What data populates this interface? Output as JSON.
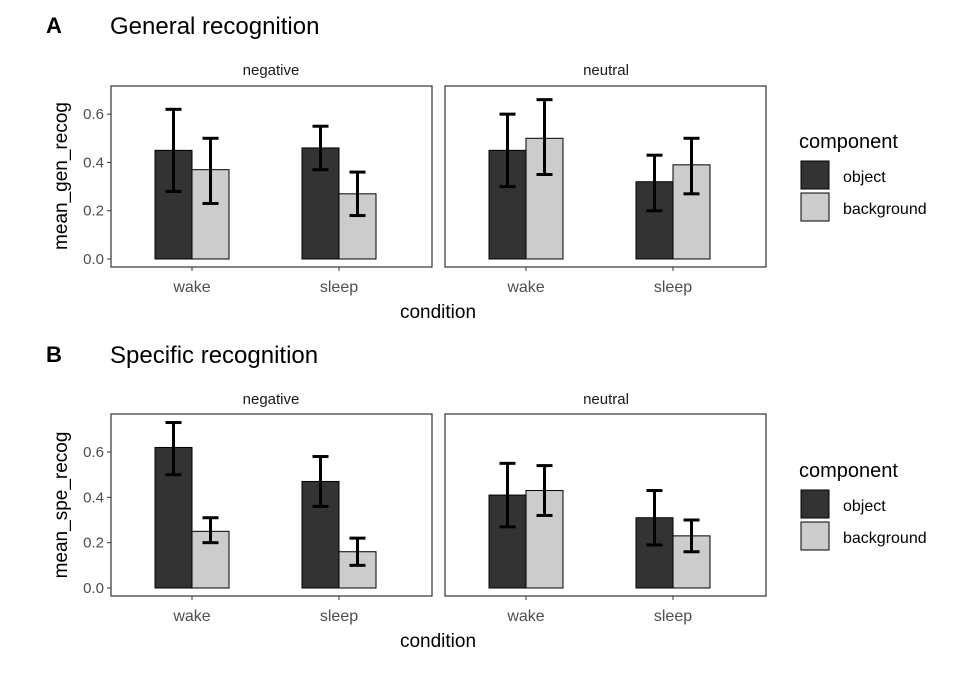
{
  "colors": {
    "object": "#333333",
    "background": "#cccccc"
  },
  "legend": {
    "title": "component",
    "items": [
      "object",
      "background"
    ]
  },
  "chart_data": [
    {
      "type": "bar",
      "tag": "A",
      "title": "General recognition",
      "xlabel": "condition",
      "ylabel": "mean_gen_recog",
      "ylim": [
        0,
        0.7
      ],
      "yticks": [
        "0.0",
        "0.2",
        "0.4",
        "0.6"
      ],
      "facets": [
        "negative",
        "neutral"
      ],
      "categories": [
        "wake",
        "sleep"
      ],
      "series": [
        {
          "name": "object",
          "values": {
            "negative": [
              0.45,
              0.46
            ],
            "neutral": [
              0.45,
              0.32
            ]
          },
          "err_low": {
            "negative": [
              0.28,
              0.37
            ],
            "neutral": [
              0.3,
              0.2
            ]
          },
          "err_high": {
            "negative": [
              0.62,
              0.55
            ],
            "neutral": [
              0.6,
              0.43
            ]
          }
        },
        {
          "name": "background",
          "values": {
            "negative": [
              0.37,
              0.27
            ],
            "neutral": [
              0.5,
              0.39
            ]
          },
          "err_low": {
            "negative": [
              0.23,
              0.18
            ],
            "neutral": [
              0.35,
              0.27
            ]
          },
          "err_high": {
            "negative": [
              0.5,
              0.36
            ],
            "neutral": [
              0.66,
              0.5
            ]
          }
        }
      ]
    },
    {
      "type": "bar",
      "tag": "B",
      "title": "Specific recognition",
      "xlabel": "condition",
      "ylabel": "mean_spe_recog",
      "ylim": [
        0,
        0.75
      ],
      "yticks": [
        "0.0",
        "0.2",
        "0.4",
        "0.6"
      ],
      "facets": [
        "negative",
        "neutral"
      ],
      "categories": [
        "wake",
        "sleep"
      ],
      "series": [
        {
          "name": "object",
          "values": {
            "negative": [
              0.62,
              0.47
            ],
            "neutral": [
              0.41,
              0.31
            ]
          },
          "err_low": {
            "negative": [
              0.5,
              0.36
            ],
            "neutral": [
              0.27,
              0.19
            ]
          },
          "err_high": {
            "negative": [
              0.73,
              0.58
            ],
            "neutral": [
              0.55,
              0.43
            ]
          }
        },
        {
          "name": "background",
          "values": {
            "negative": [
              0.25,
              0.16
            ],
            "neutral": [
              0.43,
              0.23
            ]
          },
          "err_low": {
            "negative": [
              0.2,
              0.1
            ],
            "neutral": [
              0.32,
              0.16
            ]
          },
          "err_high": {
            "negative": [
              0.31,
              0.22
            ],
            "neutral": [
              0.54,
              0.3
            ]
          }
        }
      ]
    }
  ]
}
